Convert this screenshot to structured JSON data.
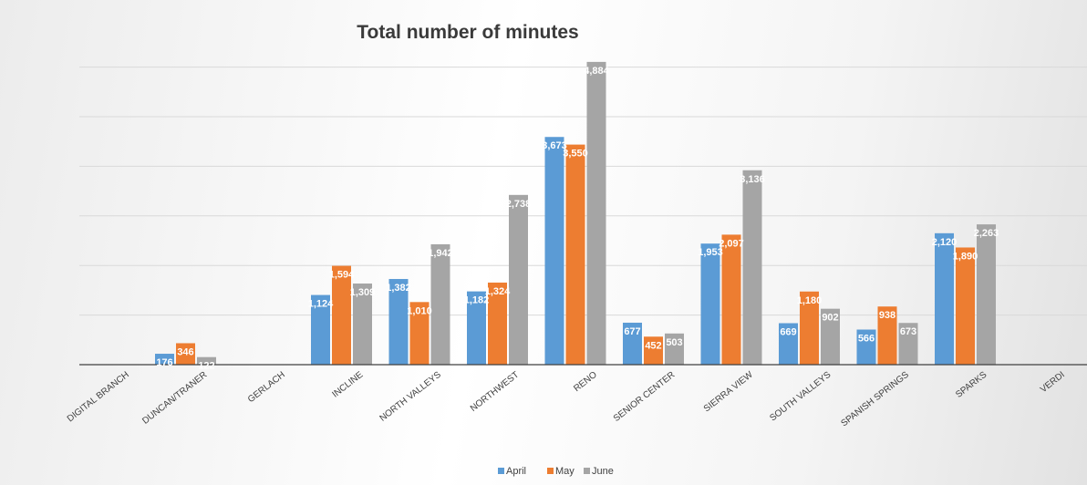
{
  "chart_data": {
    "type": "bar",
    "title": "Total number of minutes",
    "xlabel": "",
    "ylabel": "",
    "ylim": [
      0,
      5000
    ],
    "grid": true,
    "legend_position": "bottom",
    "categories": [
      "DIGITAL BRANCH",
      "DUNCAN/TRANER",
      "GERLACH",
      "INCLINE",
      "NORTH VALLEYS",
      "NORTHWEST",
      "RENO",
      "SENIOR CENTER",
      "SIERRA VIEW",
      "SOUTH VALLEYS",
      "SPANISH SPRINGS",
      "SPARKS",
      "VERDI"
    ],
    "series": [
      {
        "name": "April",
        "color": "#5B9BD5",
        "values": [
          null,
          176,
          null,
          1124,
          1382,
          1182,
          3673,
          677,
          1953,
          669,
          566,
          2120,
          null
        ],
        "labels": [
          "",
          "176",
          "",
          "1,124",
          "1,382",
          "1,182",
          "3,673",
          "677",
          "1,953",
          "669",
          "566",
          "2,120",
          ""
        ]
      },
      {
        "name": "May",
        "color": "#ED7D31",
        "values": [
          null,
          346,
          null,
          1594,
          1010,
          1324,
          3550,
          452,
          2097,
          1180,
          938,
          1890,
          null
        ],
        "labels": [
          "",
          "346",
          "",
          "1,594",
          "1,010",
          "1,324",
          "3,550",
          "452",
          "2,097",
          "1,180",
          "938",
          "1,890",
          ""
        ]
      },
      {
        "name": "June",
        "color": "#A5A5A5",
        "values": [
          null,
          122,
          null,
          1309,
          1942,
          2738,
          4884,
          503,
          3136,
          902,
          673,
          2263,
          null
        ],
        "labels": [
          "",
          "122",
          "",
          "1,309",
          "1,942",
          "2,738",
          "4,884",
          "503",
          "3,136",
          "902",
          "673",
          "2,263",
          ""
        ]
      }
    ]
  }
}
